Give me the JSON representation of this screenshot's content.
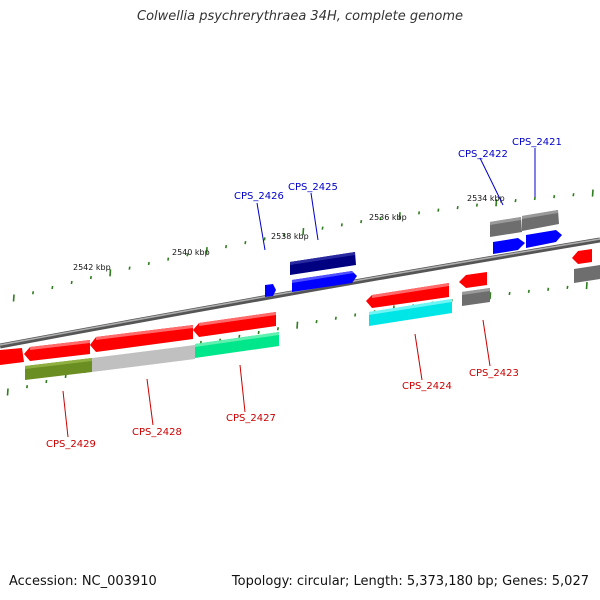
{
  "title": "Colwellia psychrerythraea 34H, complete genome",
  "footer": {
    "accession": "Accession: NC_003910",
    "summary": "Topology: circular; Length: 5,373,180 bp; Genes: 5,027"
  },
  "scale": {
    "tick_labels": [
      "2542 kbp",
      "2540 kbp",
      "2538 kbp",
      "2536 kbp",
      "2534 kbp"
    ]
  },
  "genes": {
    "forward": [
      {
        "name": "CPS_2426",
        "label_color": "#0000cc"
      },
      {
        "name": "CPS_2425",
        "label_color": "#0000cc"
      },
      {
        "name": "CPS_2422",
        "label_color": "#0000cc"
      },
      {
        "name": "CPS_2421",
        "label_color": "#0000cc"
      }
    ],
    "reverse": [
      {
        "name": "CPS_2429",
        "label_color": "#cc0000"
      },
      {
        "name": "CPS_2428",
        "label_color": "#cc0000"
      },
      {
        "name": "CPS_2427",
        "label_color": "#cc0000"
      },
      {
        "name": "CPS_2424",
        "label_color": "#cc0000"
      },
      {
        "name": "CPS_2423",
        "label_color": "#cc0000"
      }
    ]
  },
  "colors": {
    "backbone": "#808080",
    "tick": "#2e7d1e",
    "cds_reverse": "#ff0000",
    "cds_forward": "#0000ff",
    "feature_navy": "#000080",
    "feature_gray": "#6e6e6e",
    "feature_olive": "#6b8e23",
    "feature_silver": "#c0c0c0",
    "feature_spring": "#00e68a",
    "feature_cyan": "#00e5e5"
  }
}
